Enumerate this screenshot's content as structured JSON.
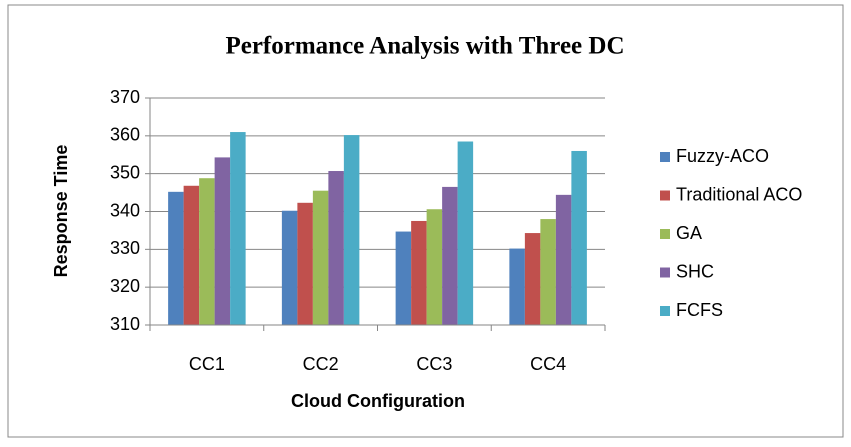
{
  "chart_data": {
    "type": "bar",
    "title": "Performance Analysis with Three DC",
    "x_label": "Cloud Configuration",
    "y_label": "Response Time",
    "categories": [
      "CC1",
      "CC2",
      "CC3",
      "CC4"
    ],
    "series": [
      {
        "name": "Fuzzy-ACO",
        "color": "#4f81bd",
        "values": [
          345.2,
          340.2,
          334.7,
          330.2
        ]
      },
      {
        "name": "Traditional ACO",
        "color": "#c0504d",
        "values": [
          346.8,
          342.3,
          337.5,
          334.3
        ]
      },
      {
        "name": "GA",
        "color": "#9bbb59",
        "values": [
          348.8,
          345.5,
          340.6,
          338
        ]
      },
      {
        "name": "SHC",
        "color": "#8064a2",
        "values": [
          354.3,
          350.7,
          346.5,
          344.4
        ]
      },
      {
        "name": "FCFS",
        "color": "#4bacc6",
        "values": [
          361,
          360.2,
          358.5,
          356
        ]
      }
    ],
    "ylim": [
      310,
      370
    ],
    "yticks": [
      310,
      320,
      330,
      340,
      350,
      360,
      370
    ],
    "grid": true,
    "legend": "right"
  }
}
